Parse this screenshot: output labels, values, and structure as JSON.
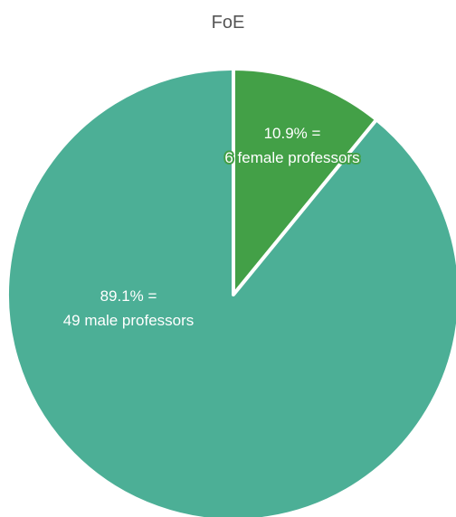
{
  "chart_data": {
    "type": "pie",
    "title": "FoE",
    "slices": [
      {
        "value": 10.9,
        "count": 6,
        "label_line1": "10.9% =",
        "label_line2": "6 female professors",
        "color": "#43a047"
      },
      {
        "value": 89.1,
        "count": 49,
        "label_line1": "89.1% =",
        "label_line2": "49 male professors",
        "color": "#4caf96"
      }
    ],
    "start_angle": "12 o'clock",
    "direction": "clockwise",
    "legend": "none"
  },
  "colors": {
    "slice_border": "#ffffff",
    "label_text": "#ffffff",
    "title_text": "#555555"
  }
}
